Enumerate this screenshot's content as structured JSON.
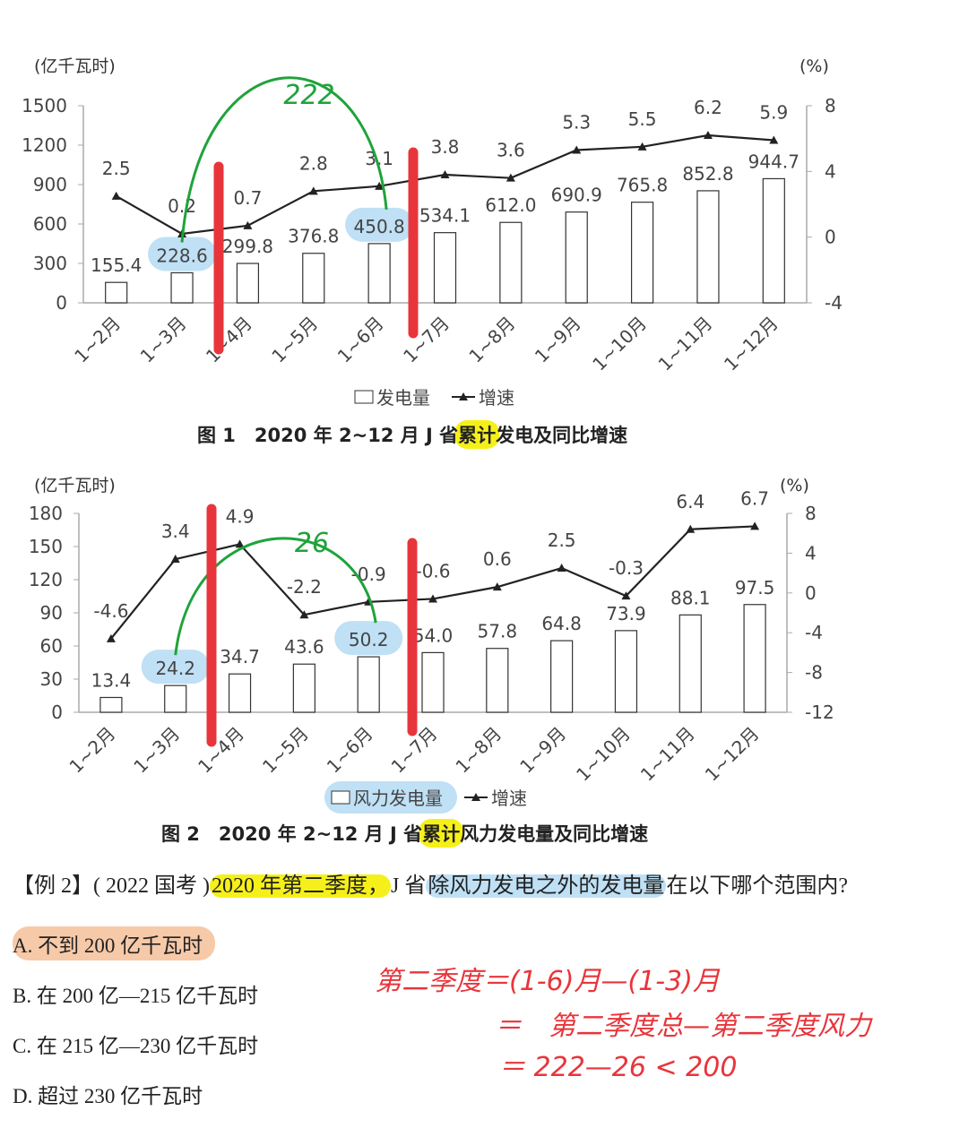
{
  "chart_data": [
    {
      "type": "bar+line",
      "title": "图 1　2020 年 2~12 月 J 省累计发电及同比增速",
      "title_parts": [
        "图 1　2020 年 2~12 月 J 省",
        "累计",
        "发电及同比增速"
      ],
      "left_unit": "(亿千瓦时)",
      "right_unit": "(%)",
      "categories": [
        "1~2月",
        "1~3月",
        "1~4月",
        "1~5月",
        "1~6月",
        "1~7月",
        "1~8月",
        "1~9月",
        "1~10月",
        "1~11月",
        "1~12月"
      ],
      "series": [
        {
          "name": "发电量",
          "type": "bar",
          "axis": "left",
          "values": [
            155.4,
            228.6,
            299.8,
            376.8,
            450.8,
            534.1,
            612.0,
            690.9,
            765.8,
            852.8,
            944.7
          ],
          "labels": [
            "155.4",
            "228.6",
            "299.8",
            "376.8",
            "450.8",
            "534.1",
            "612.0",
            "690.9",
            "765.8",
            "852.8",
            "944.7"
          ]
        },
        {
          "name": "增速",
          "type": "line",
          "axis": "right",
          "values": [
            2.5,
            0.2,
            0.7,
            2.8,
            3.1,
            3.8,
            3.6,
            5.3,
            5.5,
            6.2,
            5.9
          ],
          "labels": [
            "2.5",
            "0.2",
            "0.7",
            "2.8",
            "3.1",
            "3.8",
            "3.6",
            "5.3",
            "5.5",
            "6.2",
            "5.9"
          ]
        }
      ],
      "ylim_left": [
        0,
        1500
      ],
      "yticks_left": [
        "0",
        "300",
        "600",
        "900",
        "1200",
        "1500"
      ],
      "ylim_right": [
        -4,
        8
      ],
      "yticks_right": [
        "-4",
        "0",
        "4",
        "8"
      ],
      "legend": [
        "发电量",
        "增速"
      ],
      "annotations": {
        "arc_label": "222",
        "circled_indices": [
          1,
          4
        ],
        "red_bar_after": [
          1,
          4
        ]
      }
    },
    {
      "type": "bar+line",
      "title": "图 2　2020 年 2~12 月 J 省累计风力发电量及同比增速",
      "title_parts": [
        "图 2　2020 年 2~12 月 J 省",
        "累计",
        "风力发电量及同比增速"
      ],
      "left_unit": "(亿千瓦时)",
      "right_unit": "(%)",
      "categories": [
        "1~2月",
        "1~3月",
        "1~4月",
        "1~5月",
        "1~6月",
        "1~7月",
        "1~8月",
        "1~9月",
        "1~10月",
        "1~11月",
        "1~12月"
      ],
      "series": [
        {
          "name": "风力发电量",
          "type": "bar",
          "axis": "left",
          "values": [
            13.4,
            24.2,
            34.7,
            43.6,
            50.2,
            54.0,
            57.8,
            64.8,
            73.9,
            88.1,
            97.5
          ],
          "labels": [
            "13.4",
            "24.2",
            "34.7",
            "43.6",
            "50.2",
            "54.0",
            "57.8",
            "64.8",
            "73.9",
            "88.1",
            "97.5"
          ]
        },
        {
          "name": "增速",
          "type": "line",
          "axis": "right",
          "values": [
            -4.6,
            3.4,
            4.9,
            -2.2,
            -0.9,
            -0.6,
            0.6,
            2.5,
            -0.3,
            6.4,
            6.7
          ],
          "labels": [
            "-4.6",
            "3.4",
            "4.9",
            "-2.2",
            "-0.9",
            "-0.6",
            "0.6",
            "2.5",
            "-0.3",
            "6.4",
            "6.7"
          ]
        }
      ],
      "ylim_left": [
        0,
        180
      ],
      "yticks_left": [
        "0",
        "30",
        "60",
        "90",
        "120",
        "150",
        "180"
      ],
      "ylim_right": [
        -12,
        8
      ],
      "yticks_right": [
        "-12",
        "-8",
        "-4",
        "0",
        "4",
        "8"
      ],
      "legend": [
        "风力发电量",
        "增速"
      ],
      "annotations": {
        "arc_label": "26",
        "circled_indices": [
          1,
          4
        ],
        "red_bar_after": [
          1,
          4
        ]
      }
    }
  ],
  "question": {
    "prefix": "【例 2】( 2022 国考 )",
    "highlight1": "2020 年第二季度，",
    "middle": "J 省",
    "highlight2": "除风力发电之外的发电量",
    "suffix": "在以下哪个范围内?"
  },
  "options": [
    {
      "label": "A. 不到 200 亿千瓦时"
    },
    {
      "label": "B. 在 200 亿—215 亿千瓦时"
    },
    {
      "label": "C. 在 215 亿—230 亿千瓦时"
    },
    {
      "label": "D. 超过 230 亿千瓦时"
    }
  ],
  "handwriting": {
    "line1": "第二季度＝(1-6)月—(1-3)月",
    "line2": "＝　第二季度总—第二季度风力",
    "line3": "＝ 222—26 < 200"
  },
  "colors": {
    "highlight_yellow": "#f6f01a",
    "highlight_blue": "#bfe0f5",
    "red_marker": "#e8353b",
    "green_arc": "#1fa33b",
    "answer_peach": "#f6c9a9"
  }
}
